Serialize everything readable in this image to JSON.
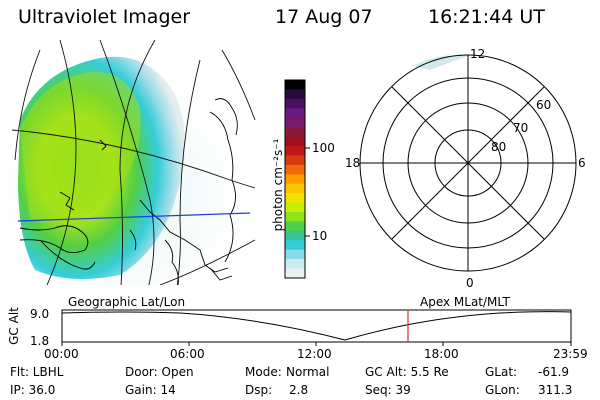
{
  "header": {
    "title": "Ultraviolet Imager",
    "date": "17 Aug 07",
    "time": "16:21:44 UT"
  },
  "colorbar": {
    "label": "photon cm⁻²s⁻¹",
    "ticks": [
      "100",
      "10"
    ],
    "colors": [
      "#000000",
      "#2b0a3d",
      "#4a1060",
      "#6a1a82",
      "#7a1a6e",
      "#8a1a3c",
      "#a01020",
      "#c01818",
      "#d83a10",
      "#ef6a08",
      "#ff9c00",
      "#ffc400",
      "#f2e400",
      "#c8ee00",
      "#8ee21a",
      "#52cf45",
      "#36c497",
      "#35cdd8",
      "#8adbe8",
      "#cdeaee",
      "#e8f0f0"
    ]
  },
  "polar_plot": {
    "mlt_labels": [
      "12",
      "6",
      "0",
      "18"
    ],
    "lat_labels": [
      "60",
      "70",
      "80"
    ]
  },
  "timeline": {
    "left_label": "Geographic Lat/Lon",
    "right_label": "Apex MLat/MLT",
    "axis_title": "GC Alt",
    "y_ticks": [
      "9.0",
      "1.8"
    ],
    "x_ticks": [
      "00:00",
      "06:00",
      "12:00",
      "18:00",
      "23:59"
    ]
  },
  "status": {
    "flt": "Flt: LBHL",
    "ip": "IP: 36.0",
    "door": "Door: Open",
    "gain": "Gain: 14",
    "mode_label": "Mode:",
    "mode_value": "Normal",
    "dsp_label": "Dsp:",
    "dsp_value": "2.8",
    "gc_alt": "GC Alt: 5.5 Re",
    "seq": "Seq: 39",
    "glat_label": "GLat:",
    "glat_value": "-61.9",
    "glon_label": "GLon:",
    "glon_value": "311.3"
  },
  "accent_colors": {
    "geo_line": "#1f3fd6",
    "time_marker": "#cc3333"
  }
}
